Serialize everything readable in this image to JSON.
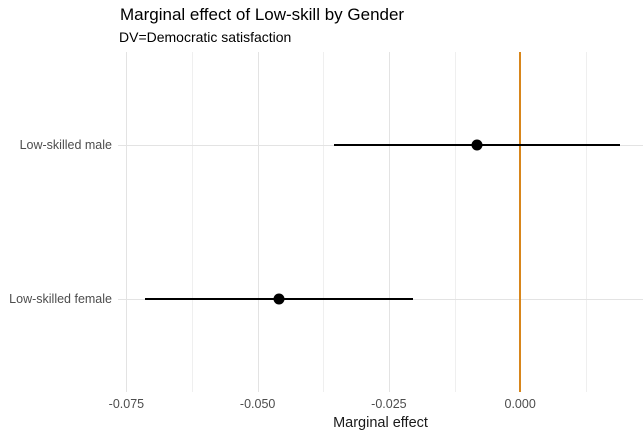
{
  "chart_data": {
    "type": "scatter",
    "variant": "coefficient-pointrange-plot",
    "title": "Marginal effect of Low-skill by Gender",
    "subtitle": "DV=Democratic satisfaction",
    "xlabel": "Marginal effect",
    "ylabel": "",
    "categories": [
      "Low-skilled male",
      "Low-skilled female"
    ],
    "series": [
      {
        "name": "Low-skilled male",
        "estimate": -0.0083,
        "ci_low": -0.0354,
        "ci_high": 0.019
      },
      {
        "name": "Low-skilled female",
        "estimate": -0.046,
        "ci_low": -0.0714,
        "ci_high": -0.0205
      }
    ],
    "xlim": [
      -0.0766,
      0.0234
    ],
    "x_major_ticks": [
      -0.075,
      -0.05,
      -0.025,
      0
    ],
    "x_tick_labels": [
      "-0.075",
      "-0.050",
      "-0.025",
      "0.000"
    ],
    "x_minor_ticks": [
      -0.0625,
      -0.0375,
      -0.0125,
      0.0125
    ],
    "reference_line_x": 0,
    "grid": true,
    "legend_position": "none",
    "colors": {
      "reference_line": "#d8861b",
      "point": "#000000",
      "ci_line": "#000000",
      "grid_major": "#e3e3e3",
      "grid_minor": "#efefef",
      "axis_text": "#4d4d4d",
      "title_text": "#000000",
      "background": "#ffffff"
    }
  }
}
